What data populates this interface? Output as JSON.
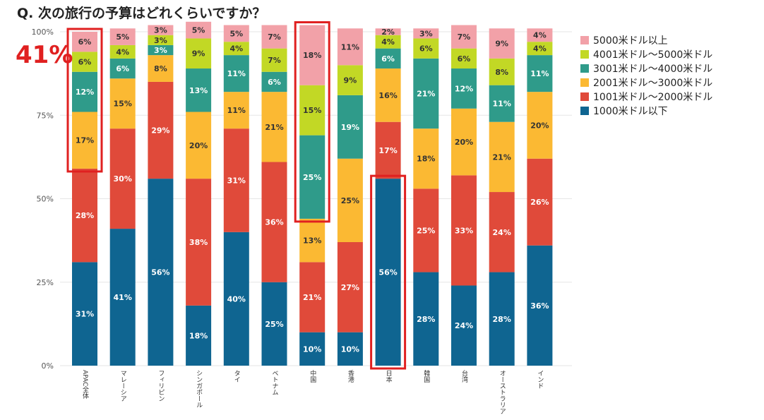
{
  "title": "Q. 次の旅行の予算はどれくらいですか？",
  "callout": "41%",
  "colors": {
    "s1": "#0f6591",
    "s2": "#e04a3a",
    "s3": "#fbb933",
    "s4": "#2f9b8a",
    "s5": "#c2d825",
    "s6": "#f2a1a8",
    "highlight": "#e02020",
    "grid": "#e6e6e6"
  },
  "chart_data": {
    "type": "bar",
    "stacked": true,
    "categories": [
      "APAC全体",
      "マレーシア",
      "フィリピン",
      "シンガポール",
      "タイ",
      "ベトナム",
      "中国",
      "香港",
      "日本",
      "韓国",
      "台湾",
      "オーストラリア",
      "インド"
    ],
    "series": [
      {
        "name": "1000米ドル以下",
        "values": [
          31,
          41,
          56,
          18,
          40,
          25,
          10,
          10,
          56,
          28,
          24,
          28,
          36
        ]
      },
      {
        "name": "1001米ドル〜2000米ドル",
        "values": [
          28,
          30,
          29,
          38,
          31,
          36,
          21,
          27,
          17,
          25,
          33,
          24,
          26
        ]
      },
      {
        "name": "2001米ドル〜3000米ドル",
        "values": [
          17,
          15,
          8,
          20,
          11,
          21,
          13,
          25,
          16,
          18,
          20,
          21,
          20
        ]
      },
      {
        "name": "3001米ドル〜4000米ドル",
        "values": [
          12,
          6,
          3,
          13,
          11,
          6,
          25,
          19,
          6,
          21,
          12,
          11,
          11
        ]
      },
      {
        "name": "4001米ドル〜5000米ドル",
        "values": [
          6,
          4,
          3,
          9,
          4,
          7,
          15,
          9,
          4,
          6,
          6,
          8,
          4
        ]
      },
      {
        "name": "5000米ドル以上",
        "values": [
          6,
          5,
          3,
          5,
          5,
          7,
          18,
          11,
          2,
          3,
          7,
          9,
          4
        ]
      }
    ],
    "y_ticks": [
      "0%",
      "25%",
      "50%",
      "75%",
      "100%"
    ],
    "ylim": [
      0,
      100
    ],
    "grid": true,
    "legend_position": "right"
  }
}
